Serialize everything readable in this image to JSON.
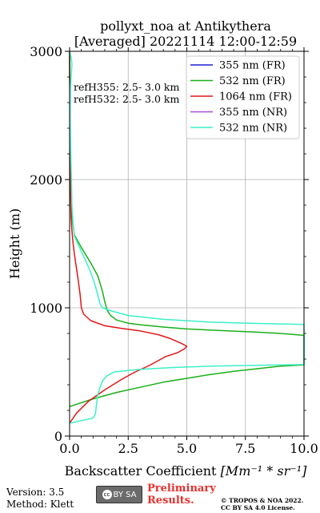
{
  "chart_data": {
    "type": "line",
    "title_line1": "pollyxt_noa at Antikythera",
    "title_line2": "[Averaged] 20221114 12:00-12:59",
    "xlabel_prefix": "Backscatter Coefficient ",
    "xlabel_math": "[Mm⁻¹ * sr⁻¹]",
    "ylabel": "Height (m)",
    "xlim": [
      0,
      10
    ],
    "ylim": [
      0,
      3000
    ],
    "xticks": [
      "0.0",
      "2.5",
      "5.0",
      "7.5",
      "10.0"
    ],
    "yticks": [
      "0",
      "1000",
      "2000",
      "3000"
    ],
    "grid": true,
    "legend_position": "top-right",
    "annotations": [
      "refH355:  2.5- 3.0 km",
      "refH532:  2.5- 3.0 km"
    ],
    "series": [
      {
        "name": "355 nm (FR)",
        "color": "#1f1fd6",
        "points": []
      },
      {
        "name": "532 nm (FR)",
        "color": "#19b019",
        "points": [
          [
            0.0,
            230
          ],
          [
            1.0,
            290
          ],
          [
            2.0,
            340
          ],
          [
            3.0,
            380
          ],
          [
            4.0,
            420
          ],
          [
            5.0,
            450
          ],
          [
            6.0,
            480
          ],
          [
            7.0,
            505
          ],
          [
            8.0,
            525
          ],
          [
            9.0,
            545
          ],
          [
            10.0,
            555
          ],
          [
            10.0,
            785
          ],
          [
            9.0,
            800
          ],
          [
            8.0,
            810
          ],
          [
            7.0,
            818
          ],
          [
            6.0,
            826
          ],
          [
            5.0,
            835
          ],
          [
            4.0,
            850
          ],
          [
            3.0,
            868
          ],
          [
            2.5,
            880
          ],
          [
            2.0,
            905
          ],
          [
            1.75,
            940
          ],
          [
            1.6,
            980
          ],
          [
            1.5,
            1050
          ],
          [
            1.4,
            1130
          ],
          [
            1.2,
            1250
          ],
          [
            0.9,
            1350
          ],
          [
            0.5,
            1470
          ],
          [
            0.2,
            1570
          ],
          [
            0.1,
            1700
          ],
          [
            0.05,
            1900
          ],
          [
            0.02,
            2200
          ],
          [
            0.01,
            2600
          ],
          [
            0.0,
            3000
          ]
        ]
      },
      {
        "name": "1064 nm (FR)",
        "color": "#e01818",
        "points": [
          [
            0.0,
            100
          ],
          [
            0.3,
            180
          ],
          [
            0.8,
            270
          ],
          [
            1.5,
            360
          ],
          [
            2.2,
            440
          ],
          [
            2.8,
            500
          ],
          [
            3.4,
            550
          ],
          [
            3.8,
            590
          ],
          [
            4.1,
            620
          ],
          [
            4.6,
            650
          ],
          [
            4.9,
            680
          ],
          [
            5.0,
            700
          ],
          [
            4.8,
            720
          ],
          [
            4.3,
            760
          ],
          [
            3.8,
            790
          ],
          [
            3.0,
            820
          ],
          [
            2.2,
            840
          ],
          [
            1.5,
            860
          ],
          [
            0.9,
            900
          ],
          [
            0.6,
            950
          ],
          [
            0.5,
            1000
          ],
          [
            0.45,
            1100
          ],
          [
            0.38,
            1200
          ],
          [
            0.3,
            1300
          ],
          [
            0.22,
            1400
          ],
          [
            0.15,
            1500
          ],
          [
            0.1,
            1600
          ],
          [
            0.06,
            1700
          ],
          [
            0.04,
            1900
          ],
          [
            0.02,
            2200
          ],
          [
            0.01,
            2600
          ],
          [
            0.0,
            3000
          ]
        ]
      },
      {
        "name": "355 nm (NR)",
        "color": "#a64fd6",
        "points": []
      },
      {
        "name": "532 nm (NR)",
        "color": "#3cf0c8",
        "points": [
          [
            0.0,
            100
          ],
          [
            0.5,
            120
          ],
          [
            1.0,
            140
          ],
          [
            1.1,
            170
          ],
          [
            1.15,
            250
          ],
          [
            1.2,
            320
          ],
          [
            1.3,
            380
          ],
          [
            1.4,
            430
          ],
          [
            1.6,
            470
          ],
          [
            1.9,
            500
          ],
          [
            3.0,
            520
          ],
          [
            4.5,
            535
          ],
          [
            6.0,
            545
          ],
          [
            8.0,
            552
          ],
          [
            10.0,
            558
          ],
          [
            10.0,
            870
          ],
          [
            8.0,
            878
          ],
          [
            6.0,
            888
          ],
          [
            4.0,
            910
          ],
          [
            2.5,
            940
          ],
          [
            1.8,
            975
          ],
          [
            1.4,
            1000
          ],
          [
            1.3,
            1030
          ],
          [
            1.2,
            1100
          ],
          [
            1.05,
            1200
          ],
          [
            0.85,
            1300
          ],
          [
            0.6,
            1400
          ],
          [
            0.35,
            1500
          ],
          [
            0.2,
            1560
          ],
          [
            0.15,
            1650
          ],
          [
            0.1,
            1800
          ],
          [
            0.08,
            2000
          ],
          [
            0.05,
            2200
          ],
          [
            0.02,
            2480
          ],
          [
            0.03,
            2700
          ],
          [
            0.1,
            2900
          ],
          [
            0.07,
            2950
          ],
          [
            0.0,
            3000
          ]
        ]
      }
    ]
  },
  "footer": {
    "version": "Version: 3.5",
    "method": "Method: Klett",
    "preliminary_line1": "Preliminary",
    "preliminary_line2": "Results.",
    "copyright_line1": "© TROPOS & NOA 2022.",
    "copyright_line2": "CC BY SA 4.0 License.",
    "badge_text": "BY SA"
  },
  "icons": {
    "cc_badge": "cc-by-sa-license-icon"
  }
}
